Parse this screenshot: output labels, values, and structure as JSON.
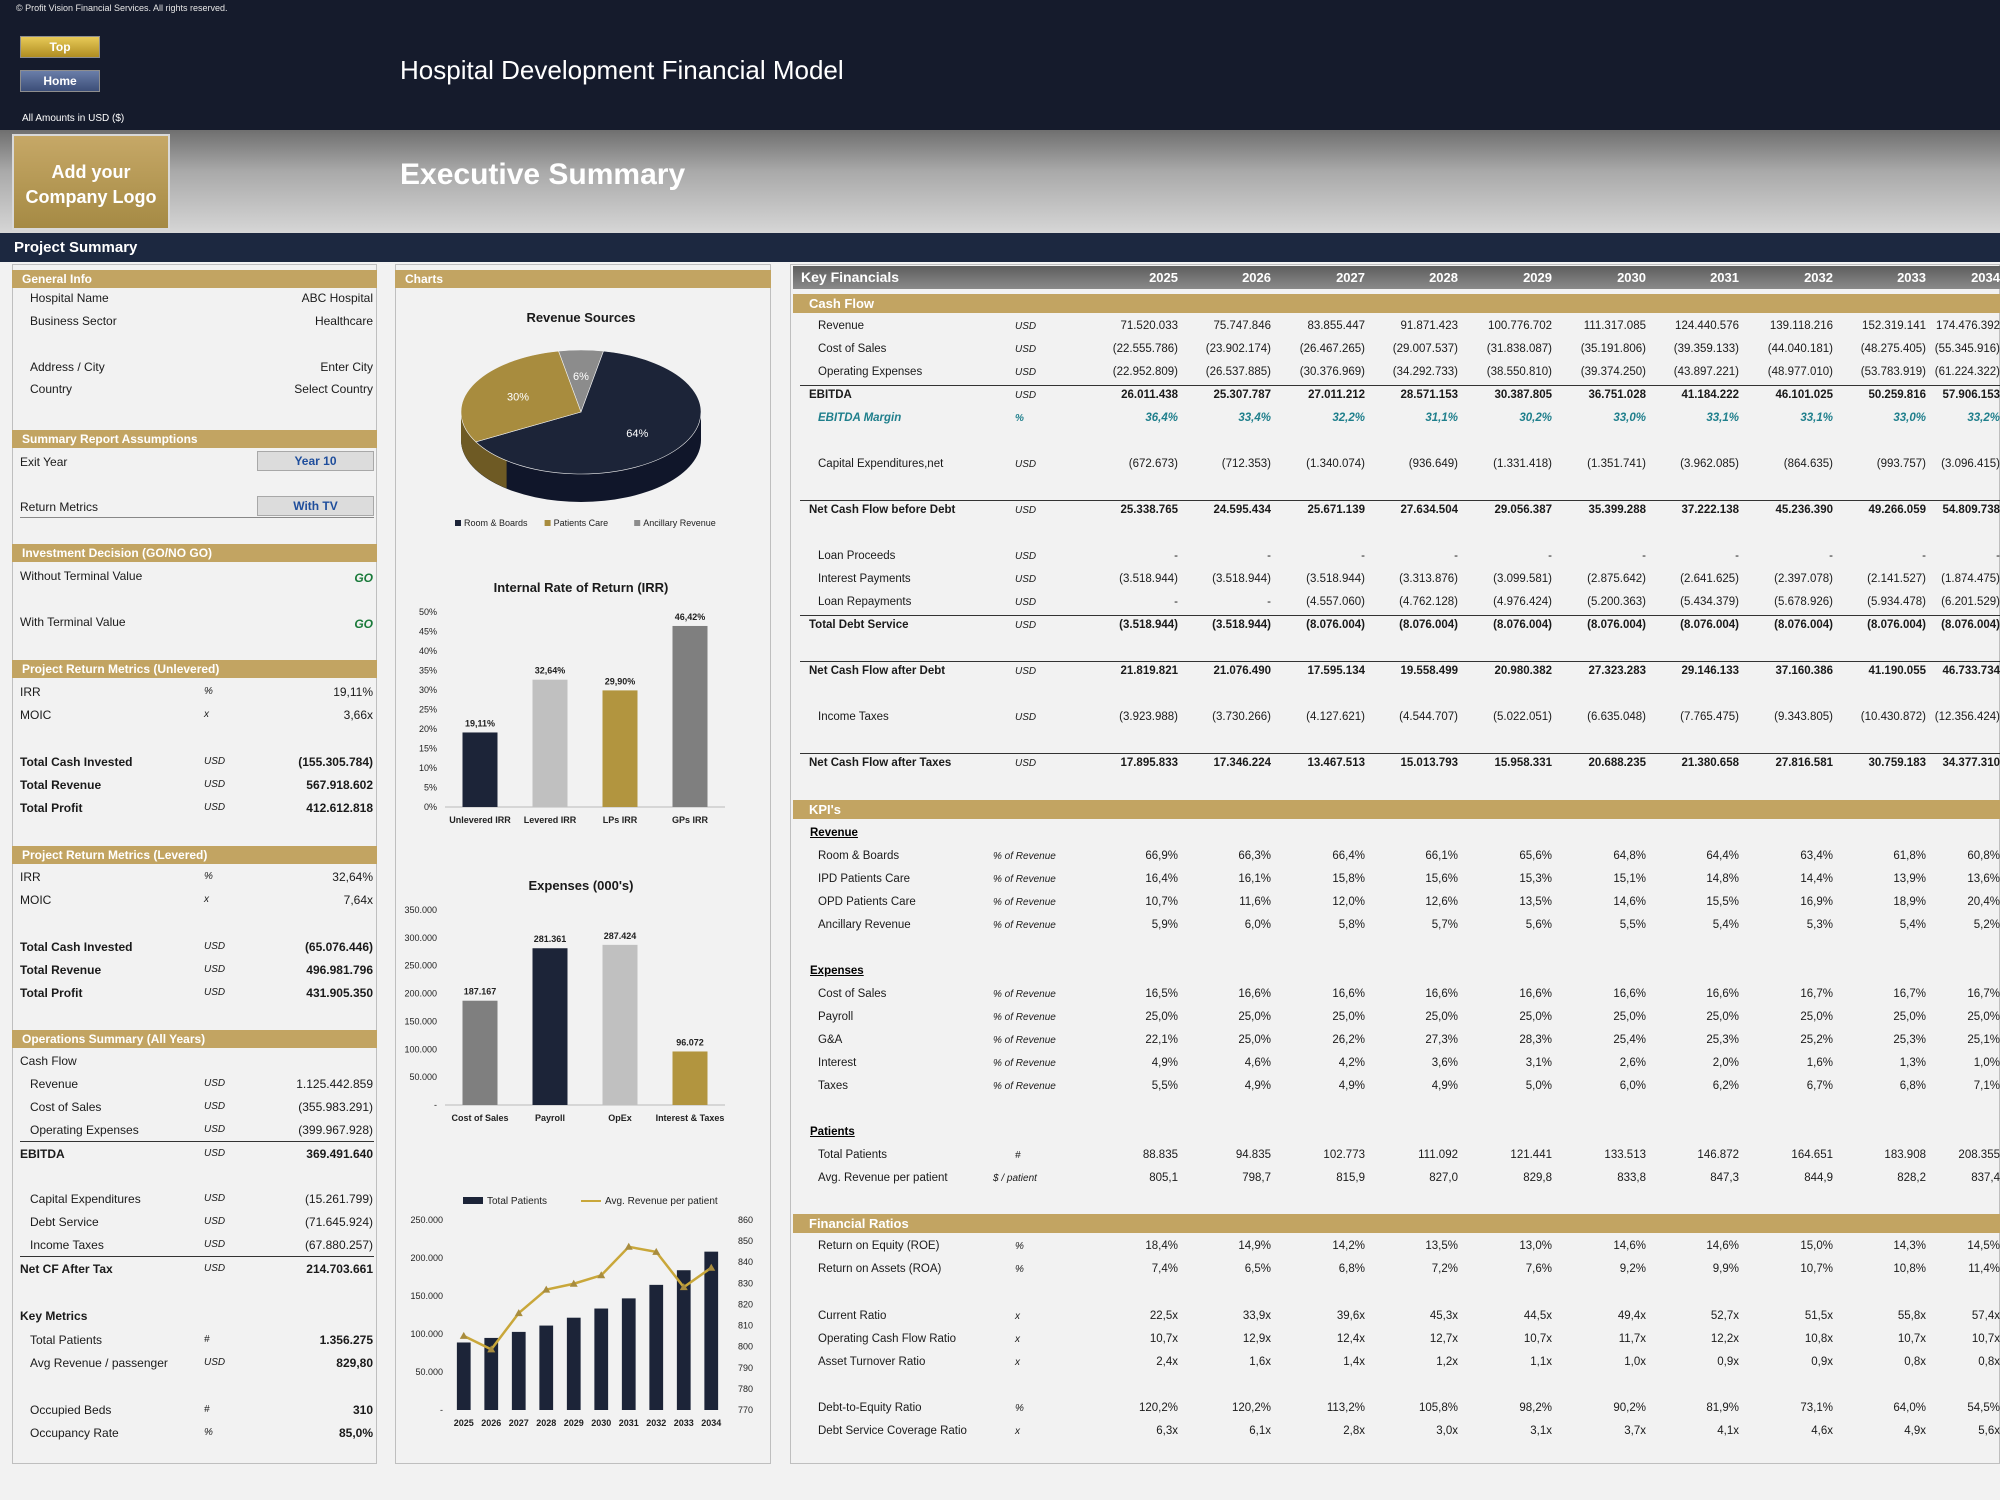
{
  "copyright": "© Profit Vision Financial Services. All rights reserved.",
  "buttons": {
    "top": "Top",
    "home": "Home"
  },
  "amounts_label": "All Amounts in  USD ($)",
  "title": "Hospital Development Financial Model",
  "logo_text": "Add your Company Logo",
  "exec_title": "Executive Summary",
  "project_summary": "Project Summary",
  "general_info": {
    "header": "General Info",
    "rows": [
      {
        "label": "Hospital Name",
        "value": "ABC Hospital"
      },
      {
        "label": "Business Sector",
        "value": "Healthcare"
      },
      {
        "label": "Address / City",
        "value": "Enter City"
      },
      {
        "label": "Country",
        "value": "Select Country"
      }
    ]
  },
  "assumptions": {
    "header": "Summary  Report Assumptions",
    "exit_label": "Exit Year",
    "exit_value": "Year 10",
    "return_label": "Return Metrics",
    "return_value": "With TV"
  },
  "decision": {
    "header": "Investment Decision (GO/NO GO)",
    "without_label": "Without Terminal Value",
    "without_value": "GO",
    "with_label": "With Terminal Value",
    "with_value": "GO"
  },
  "unlevered": {
    "header": "Project Return Metrics (Unlevered)",
    "irr": {
      "label": "IRR",
      "unit": "%",
      "value": "19,11%"
    },
    "moic": {
      "label": "MOIC",
      "unit": "x",
      "value": "3,66x"
    },
    "rows": [
      {
        "label": "Total Cash Invested",
        "unit": "USD",
        "value": "(155.305.784)"
      },
      {
        "label": "Total Revenue",
        "unit": "USD",
        "value": "567.918.602"
      },
      {
        "label": "Total Profit",
        "unit": "USD",
        "value": "412.612.818"
      }
    ]
  },
  "levered": {
    "header": "Project Return Metrics (Levered)",
    "irr": {
      "label": "IRR",
      "unit": "%",
      "value": "32,64%"
    },
    "moic": {
      "label": "MOIC",
      "unit": "x",
      "value": "7,64x"
    },
    "rows": [
      {
        "label": "Total Cash Invested",
        "unit": "USD",
        "value": "(65.076.446)"
      },
      {
        "label": "Total Revenue",
        "unit": "USD",
        "value": "496.981.796"
      },
      {
        "label": "Total Profit",
        "unit": "USD",
        "value": "431.905.350"
      }
    ]
  },
  "operations": {
    "header": "Operations Summary (All Years)",
    "cash_flow": "Cash Flow",
    "rows": [
      {
        "label": "Revenue",
        "unit": "USD",
        "value": "1.125.442.859"
      },
      {
        "label": "Cost of Sales",
        "unit": "USD",
        "value": "(355.983.291)"
      },
      {
        "label": "Operating Expenses",
        "unit": "USD",
        "value": "(399.967.928)"
      }
    ],
    "ebitda": {
      "label": "EBITDA",
      "unit": "USD",
      "value": "369.491.640"
    },
    "rows2": [
      {
        "label": "Capital Expenditures",
        "unit": "USD",
        "value": "(15.261.799)"
      },
      {
        "label": "Debt Service",
        "unit": "USD",
        "value": "(71.645.924)"
      },
      {
        "label": "Income Taxes",
        "unit": "USD",
        "value": "(67.880.257)"
      }
    ],
    "netcf": {
      "label": "Net CF After Tax",
      "unit": "USD",
      "value": "214.703.661"
    },
    "key_metrics": "Key Metrics",
    "km": [
      {
        "label": "Total Patients",
        "unit": "#",
        "value": "1.356.275"
      },
      {
        "label": "Avg Revenue / passenger",
        "unit": "USD",
        "value": "829,80"
      },
      {
        "label": "Occupied Beds",
        "unit": "#",
        "value": "310"
      },
      {
        "label": "Occupancy Rate",
        "unit": "%",
        "value": "85,0%"
      }
    ]
  },
  "charts_header": "Charts",
  "chart_data": [
    {
      "type": "pie",
      "title": "Revenue Sources",
      "categories": [
        "Room & Boards",
        "Patients Care",
        "Ancillary Revenue"
      ],
      "values": [
        64,
        30,
        6
      ],
      "colors": [
        "#1c2438",
        "#a88c3e",
        "#8c8c8c"
      ]
    },
    {
      "type": "bar",
      "title": "Internal Rate of Return (IRR)",
      "categories": [
        "Unlevered IRR",
        "Levered IRR",
        "LPs IRR",
        "GPs IRR"
      ],
      "values": [
        19.11,
        32.64,
        29.9,
        46.42
      ],
      "labels": [
        "19,11%",
        "32,64%",
        "29,90%",
        "46,42%"
      ],
      "ylim": [
        0,
        50
      ],
      "yticks": [
        "0%",
        "5%",
        "10%",
        "15%",
        "20%",
        "25%",
        "30%",
        "35%",
        "40%",
        "45%",
        "50%"
      ],
      "colors": [
        "#1c2438",
        "#c0c0c0",
        "#b2953f",
        "#7f7f7f"
      ]
    },
    {
      "type": "bar",
      "title": "Expenses (000's)",
      "categories": [
        "Cost of Sales",
        "Payroll",
        "OpEx",
        "Interest & Taxes"
      ],
      "values": [
        187167,
        281361,
        287424,
        96072
      ],
      "labels": [
        "187.167",
        "281.361",
        "287.424",
        "96.072"
      ],
      "ylim": [
        0,
        350000
      ],
      "yticks": [
        "-",
        "50.000",
        "100.000",
        "150.000",
        "200.000",
        "250.000",
        "300.000",
        "350.000"
      ],
      "colors": [
        "#7f7f7f",
        "#1c2438",
        "#c0c0c0",
        "#b2953f"
      ]
    },
    {
      "type": "bar-line",
      "categories": [
        "2025",
        "2026",
        "2027",
        "2028",
        "2029",
        "2030",
        "2031",
        "2032",
        "2033",
        "2034"
      ],
      "series": [
        {
          "name": "Total Patients",
          "values": [
            88835,
            94835,
            102773,
            111092,
            121441,
            133513,
            146872,
            164651,
            183908,
            208355
          ]
        },
        {
          "name": "Avg. Revenue per patient",
          "values": [
            805.1,
            798.7,
            815.9,
            827.0,
            829.8,
            833.8,
            847.3,
            844.9,
            828.2,
            837.4
          ]
        }
      ],
      "ylim": [
        0,
        250000
      ],
      "y2lim": [
        770,
        860
      ],
      "yticks": [
        "-",
        "50.000",
        "100.000",
        "150.000",
        "200.000",
        "250.000"
      ],
      "y2ticks": [
        "770",
        "780",
        "790",
        "800",
        "810",
        "820",
        "830",
        "840",
        "850",
        "860"
      ]
    }
  ],
  "kf": {
    "header": "Key Financials",
    "years": [
      "2025",
      "2026",
      "2027",
      "2028",
      "2029",
      "2030",
      "2031",
      "2032",
      "2033",
      "2034"
    ],
    "cashflow_header": "Cash Flow",
    "cashflow": [
      {
        "label": "Revenue",
        "unit": "USD",
        "v": [
          "71.520.033",
          "75.747.846",
          "83.855.447",
          "91.871.423",
          "100.776.702",
          "111.317.085",
          "124.440.576",
          "139.118.216",
          "152.319.141",
          "174.476.392"
        ]
      },
      {
        "label": "Cost of Sales",
        "unit": "USD",
        "v": [
          "(22.555.786)",
          "(23.902.174)",
          "(26.467.265)",
          "(29.007.537)",
          "(31.838.087)",
          "(35.191.806)",
          "(39.359.133)",
          "(44.040.181)",
          "(48.275.405)",
          "(55.345.916)"
        ]
      },
      {
        "label": "Operating Expenses",
        "unit": "USD",
        "v": [
          "(22.952.809)",
          "(26.537.885)",
          "(30.376.969)",
          "(34.292.733)",
          "(38.550.810)",
          "(39.374.250)",
          "(43.897.221)",
          "(48.977.010)",
          "(53.783.919)",
          "(61.224.322)"
        ]
      },
      {
        "label": "EBITDA",
        "unit": "USD",
        "v": [
          "26.011.438",
          "25.307.787",
          "27.011.212",
          "28.571.153",
          "30.387.805",
          "36.751.028",
          "41.184.222",
          "46.101.025",
          "50.259.816",
          "57.906.153"
        ],
        "bold": true
      },
      {
        "label": "EBITDA Margin",
        "unit": "%",
        "v": [
          "36,4%",
          "33,4%",
          "32,2%",
          "31,1%",
          "30,2%",
          "33,0%",
          "33,1%",
          "33,1%",
          "33,0%",
          "33,2%"
        ],
        "italic": true
      },
      {
        "label": "Capital Expenditures,net",
        "unit": "USD",
        "v": [
          "(672.673)",
          "(712.353)",
          "(1.340.074)",
          "(936.649)",
          "(1.331.418)",
          "(1.351.741)",
          "(3.962.085)",
          "(864.635)",
          "(993.757)",
          "(3.096.415)"
        ]
      },
      {
        "label": "Net Cash Flow before Debt",
        "unit": "USD",
        "v": [
          "25.338.765",
          "24.595.434",
          "25.671.139",
          "27.634.504",
          "29.056.387",
          "35.399.288",
          "37.222.138",
          "45.236.390",
          "49.266.059",
          "54.809.738"
        ],
        "bold": true
      },
      {
        "label": "Loan Proceeds",
        "unit": "USD",
        "v": [
          "-",
          "-",
          "-",
          "-",
          "-",
          "-",
          "-",
          "-",
          "-",
          "-"
        ]
      },
      {
        "label": "Interest Payments",
        "unit": "USD",
        "v": [
          "(3.518.944)",
          "(3.518.944)",
          "(3.518.944)",
          "(3.313.876)",
          "(3.099.581)",
          "(2.875.642)",
          "(2.641.625)",
          "(2.397.078)",
          "(2.141.527)",
          "(1.874.475)"
        ]
      },
      {
        "label": "Loan Repayments",
        "unit": "USD",
        "v": [
          "-",
          "-",
          "(4.557.060)",
          "(4.762.128)",
          "(4.976.424)",
          "(5.200.363)",
          "(5.434.379)",
          "(5.678.926)",
          "(5.934.478)",
          "(6.201.529)"
        ]
      },
      {
        "label": "Total Debt Service",
        "unit": "USD",
        "v": [
          "(3.518.944)",
          "(3.518.944)",
          "(8.076.004)",
          "(8.076.004)",
          "(8.076.004)",
          "(8.076.004)",
          "(8.076.004)",
          "(8.076.004)",
          "(8.076.004)",
          "(8.076.004)"
        ],
        "bold": true
      },
      {
        "label": "Net Cash Flow after Debt",
        "unit": "USD",
        "v": [
          "21.819.821",
          "21.076.490",
          "17.595.134",
          "19.558.499",
          "20.980.382",
          "27.323.283",
          "29.146.133",
          "37.160.386",
          "41.190.055",
          "46.733.734"
        ],
        "bold": true
      },
      {
        "label": "Income Taxes",
        "unit": "USD",
        "v": [
          "(3.923.988)",
          "(3.730.266)",
          "(4.127.621)",
          "(4.544.707)",
          "(5.022.051)",
          "(6.635.048)",
          "(7.765.475)",
          "(9.343.805)",
          "(10.430.872)",
          "(12.356.424)"
        ]
      },
      {
        "label": "Net Cash Flow after Taxes",
        "unit": "USD",
        "v": [
          "17.895.833",
          "17.346.224",
          "13.467.513",
          "15.013.793",
          "15.958.331",
          "20.688.235",
          "21.380.658",
          "27.816.581",
          "30.759.183",
          "34.377.310"
        ],
        "bold": true
      }
    ],
    "kpi_header": "KPI's",
    "revenue_title": "Revenue",
    "revenue": [
      {
        "label": "Room & Boards",
        "unit": "% of Revenue",
        "v": [
          "66,9%",
          "66,3%",
          "66,4%",
          "66,1%",
          "65,6%",
          "64,8%",
          "64,4%",
          "63,4%",
          "61,8%",
          "60,8%"
        ]
      },
      {
        "label": "IPD Patients Care",
        "unit": "% of Revenue",
        "v": [
          "16,4%",
          "16,1%",
          "15,8%",
          "15,6%",
          "15,3%",
          "15,1%",
          "14,8%",
          "14,4%",
          "13,9%",
          "13,6%"
        ]
      },
      {
        "label": "OPD Patients Care",
        "unit": "% of Revenue",
        "v": [
          "10,7%",
          "11,6%",
          "12,0%",
          "12,6%",
          "13,5%",
          "14,6%",
          "15,5%",
          "16,9%",
          "18,9%",
          "20,4%"
        ]
      },
      {
        "label": "Ancillary Revenue",
        "unit": "% of Revenue",
        "v": [
          "5,9%",
          "6,0%",
          "5,8%",
          "5,7%",
          "5,6%",
          "5,5%",
          "5,4%",
          "5,3%",
          "5,4%",
          "5,2%"
        ]
      }
    ],
    "expenses_title": "Expenses",
    "expenses": [
      {
        "label": "Cost of Sales",
        "unit": "% of Revenue",
        "v": [
          "16,5%",
          "16,6%",
          "16,6%",
          "16,6%",
          "16,6%",
          "16,6%",
          "16,6%",
          "16,7%",
          "16,7%",
          "16,7%"
        ]
      },
      {
        "label": "Payroll",
        "unit": "% of Revenue",
        "v": [
          "25,0%",
          "25,0%",
          "25,0%",
          "25,0%",
          "25,0%",
          "25,0%",
          "25,0%",
          "25,0%",
          "25,0%",
          "25,0%"
        ]
      },
      {
        "label": "G&A",
        "unit": "% of Revenue",
        "v": [
          "22,1%",
          "25,0%",
          "26,2%",
          "27,3%",
          "28,3%",
          "25,4%",
          "25,3%",
          "25,2%",
          "25,3%",
          "25,1%"
        ]
      },
      {
        "label": "Interest",
        "unit": "% of Revenue",
        "v": [
          "4,9%",
          "4,6%",
          "4,2%",
          "3,6%",
          "3,1%",
          "2,6%",
          "2,0%",
          "1,6%",
          "1,3%",
          "1,0%"
        ]
      },
      {
        "label": "Taxes",
        "unit": "% of Revenue",
        "v": [
          "5,5%",
          "4,9%",
          "4,9%",
          "4,9%",
          "5,0%",
          "6,0%",
          "6,2%",
          "6,7%",
          "6,8%",
          "7,1%"
        ]
      }
    ],
    "patients_title": "Patients",
    "patients": [
      {
        "label": "Total Patients",
        "unit": "#",
        "v": [
          "88.835",
          "94.835",
          "102.773",
          "111.092",
          "121.441",
          "133.513",
          "146.872",
          "164.651",
          "183.908",
          "208.355"
        ]
      },
      {
        "label": "Avg. Revenue per patient",
        "unit": "$ / patient",
        "v": [
          "805,1",
          "798,7",
          "815,9",
          "827,0",
          "829,8",
          "833,8",
          "847,3",
          "844,9",
          "828,2",
          "837,4"
        ]
      }
    ],
    "ratios_header": "Financial Ratios",
    "ratios": [
      {
        "label": "Return on Equity (ROE)",
        "unit": "%",
        "v": [
          "18,4%",
          "14,9%",
          "14,2%",
          "13,5%",
          "13,0%",
          "14,6%",
          "14,6%",
          "15,0%",
          "14,3%",
          "14,5%"
        ]
      },
      {
        "label": "Return on Assets (ROA)",
        "unit": "%",
        "v": [
          "7,4%",
          "6,5%",
          "6,8%",
          "7,2%",
          "7,6%",
          "9,2%",
          "9,9%",
          "10,7%",
          "10,8%",
          "11,4%"
        ]
      },
      {
        "label": "Current Ratio",
        "unit": "x",
        "v": [
          "22,5x",
          "33,9x",
          "39,6x",
          "45,3x",
          "44,5x",
          "49,4x",
          "52,7x",
          "51,5x",
          "55,8x",
          "57,4x"
        ]
      },
      {
        "label": "Operating Cash Flow Ratio",
        "unit": "x",
        "v": [
          "10,7x",
          "12,9x",
          "12,4x",
          "12,7x",
          "10,7x",
          "11,7x",
          "12,2x",
          "10,8x",
          "10,7x",
          "10,7x"
        ]
      },
      {
        "label": "Asset Turnover Ratio",
        "unit": "x",
        "v": [
          "2,4x",
          "1,6x",
          "1,4x",
          "1,2x",
          "1,1x",
          "1,0x",
          "0,9x",
          "0,9x",
          "0,8x",
          "0,8x"
        ]
      },
      {
        "label": "Debt-to-Equity Ratio",
        "unit": "%",
        "v": [
          "120,2%",
          "120,2%",
          "113,2%",
          "105,8%",
          "98,2%",
          "90,2%",
          "81,9%",
          "73,1%",
          "64,0%",
          "54,5%"
        ]
      },
      {
        "label": "Debt Service Coverage Ratio",
        "unit": "x",
        "v": [
          "6,3x",
          "6,1x",
          "2,8x",
          "3,0x",
          "3,1x",
          "3,7x",
          "4,1x",
          "4,6x",
          "4,9x",
          "5,6x"
        ]
      }
    ]
  }
}
